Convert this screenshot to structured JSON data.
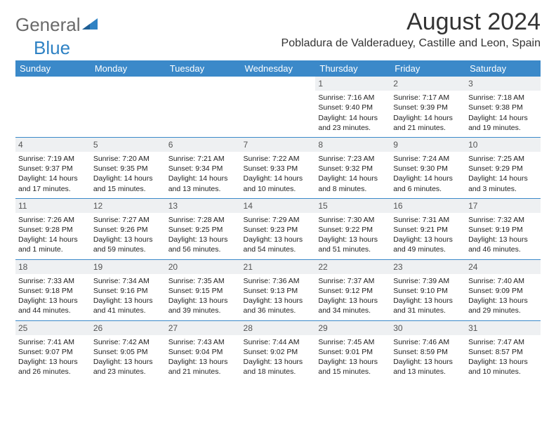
{
  "brand": {
    "part1": "General",
    "part2": "Blue"
  },
  "title": "August 2024",
  "location": "Pobladura de Valderaduey, Castille and Leon, Spain",
  "colors": {
    "header_bg": "#3b89c9",
    "header_text": "#ffffff",
    "daynum_bg": "#eef0f2",
    "border": "#3b89c9",
    "logo_gray": "#6a6a6a",
    "logo_blue": "#2f82c4"
  },
  "weekdays": [
    "Sunday",
    "Monday",
    "Tuesday",
    "Wednesday",
    "Thursday",
    "Friday",
    "Saturday"
  ],
  "cells": [
    null,
    null,
    null,
    null,
    {
      "n": "1",
      "sr": "7:16 AM",
      "ss": "9:40 PM",
      "dl": "14 hours and 23 minutes."
    },
    {
      "n": "2",
      "sr": "7:17 AM",
      "ss": "9:39 PM",
      "dl": "14 hours and 21 minutes."
    },
    {
      "n": "3",
      "sr": "7:18 AM",
      "ss": "9:38 PM",
      "dl": "14 hours and 19 minutes."
    },
    {
      "n": "4",
      "sr": "7:19 AM",
      "ss": "9:37 PM",
      "dl": "14 hours and 17 minutes."
    },
    {
      "n": "5",
      "sr": "7:20 AM",
      "ss": "9:35 PM",
      "dl": "14 hours and 15 minutes."
    },
    {
      "n": "6",
      "sr": "7:21 AM",
      "ss": "9:34 PM",
      "dl": "14 hours and 13 minutes."
    },
    {
      "n": "7",
      "sr": "7:22 AM",
      "ss": "9:33 PM",
      "dl": "14 hours and 10 minutes."
    },
    {
      "n": "8",
      "sr": "7:23 AM",
      "ss": "9:32 PM",
      "dl": "14 hours and 8 minutes."
    },
    {
      "n": "9",
      "sr": "7:24 AM",
      "ss": "9:30 PM",
      "dl": "14 hours and 6 minutes."
    },
    {
      "n": "10",
      "sr": "7:25 AM",
      "ss": "9:29 PM",
      "dl": "14 hours and 3 minutes."
    },
    {
      "n": "11",
      "sr": "7:26 AM",
      "ss": "9:28 PM",
      "dl": "14 hours and 1 minute."
    },
    {
      "n": "12",
      "sr": "7:27 AM",
      "ss": "9:26 PM",
      "dl": "13 hours and 59 minutes."
    },
    {
      "n": "13",
      "sr": "7:28 AM",
      "ss": "9:25 PM",
      "dl": "13 hours and 56 minutes."
    },
    {
      "n": "14",
      "sr": "7:29 AM",
      "ss": "9:23 PM",
      "dl": "13 hours and 54 minutes."
    },
    {
      "n": "15",
      "sr": "7:30 AM",
      "ss": "9:22 PM",
      "dl": "13 hours and 51 minutes."
    },
    {
      "n": "16",
      "sr": "7:31 AM",
      "ss": "9:21 PM",
      "dl": "13 hours and 49 minutes."
    },
    {
      "n": "17",
      "sr": "7:32 AM",
      "ss": "9:19 PM",
      "dl": "13 hours and 46 minutes."
    },
    {
      "n": "18",
      "sr": "7:33 AM",
      "ss": "9:18 PM",
      "dl": "13 hours and 44 minutes."
    },
    {
      "n": "19",
      "sr": "7:34 AM",
      "ss": "9:16 PM",
      "dl": "13 hours and 41 minutes."
    },
    {
      "n": "20",
      "sr": "7:35 AM",
      "ss": "9:15 PM",
      "dl": "13 hours and 39 minutes."
    },
    {
      "n": "21",
      "sr": "7:36 AM",
      "ss": "9:13 PM",
      "dl": "13 hours and 36 minutes."
    },
    {
      "n": "22",
      "sr": "7:37 AM",
      "ss": "9:12 PM",
      "dl": "13 hours and 34 minutes."
    },
    {
      "n": "23",
      "sr": "7:39 AM",
      "ss": "9:10 PM",
      "dl": "13 hours and 31 minutes."
    },
    {
      "n": "24",
      "sr": "7:40 AM",
      "ss": "9:09 PM",
      "dl": "13 hours and 29 minutes."
    },
    {
      "n": "25",
      "sr": "7:41 AM",
      "ss": "9:07 PM",
      "dl": "13 hours and 26 minutes."
    },
    {
      "n": "26",
      "sr": "7:42 AM",
      "ss": "9:05 PM",
      "dl": "13 hours and 23 minutes."
    },
    {
      "n": "27",
      "sr": "7:43 AM",
      "ss": "9:04 PM",
      "dl": "13 hours and 21 minutes."
    },
    {
      "n": "28",
      "sr": "7:44 AM",
      "ss": "9:02 PM",
      "dl": "13 hours and 18 minutes."
    },
    {
      "n": "29",
      "sr": "7:45 AM",
      "ss": "9:01 PM",
      "dl": "13 hours and 15 minutes."
    },
    {
      "n": "30",
      "sr": "7:46 AM",
      "ss": "8:59 PM",
      "dl": "13 hours and 13 minutes."
    },
    {
      "n": "31",
      "sr": "7:47 AM",
      "ss": "8:57 PM",
      "dl": "13 hours and 10 minutes."
    }
  ],
  "labels": {
    "sunrise": "Sunrise: ",
    "sunset": "Sunset: ",
    "daylight": "Daylight: "
  }
}
